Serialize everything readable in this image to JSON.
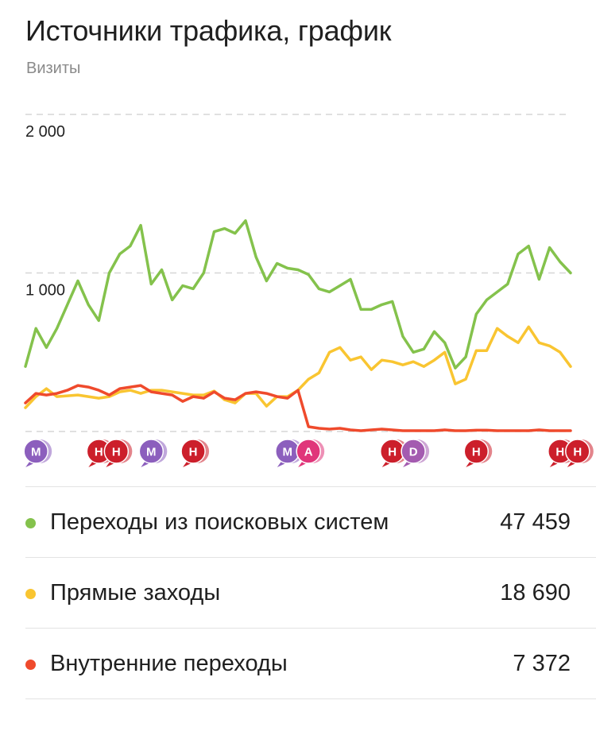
{
  "header": {
    "title": "Источники трафика, график",
    "subtitle": "Визиты"
  },
  "chart_data": {
    "type": "line",
    "title": "Источники трафика, график",
    "ylabel": "Визиты",
    "ylim": [
      0,
      2000
    ],
    "y_ticks": [
      {
        "value": 2000,
        "label": "2 000"
      },
      {
        "value": 1000,
        "label": "1 000"
      }
    ],
    "grid": true,
    "series": [
      {
        "name": "Переходы из поисковых систем",
        "color": "#84c24c",
        "values": [
          410,
          650,
          530,
          650,
          800,
          950,
          800,
          700,
          1000,
          1120,
          1170,
          1300,
          930,
          1020,
          830,
          920,
          900,
          1000,
          1260,
          1280,
          1250,
          1330,
          1100,
          950,
          1060,
          1030,
          1020,
          990,
          900,
          880,
          920,
          960,
          770,
          770,
          800,
          820,
          600,
          500,
          520,
          630,
          560,
          400,
          470,
          740,
          830,
          880,
          930,
          1120,
          1170,
          960,
          1160,
          1070,
          1000
        ]
      },
      {
        "name": "Прямые заходы",
        "color": "#f9c531",
        "values": [
          150,
          220,
          270,
          220,
          225,
          230,
          220,
          210,
          220,
          250,
          260,
          240,
          260,
          260,
          250,
          240,
          230,
          230,
          255,
          200,
          180,
          240,
          240,
          160,
          220,
          220,
          260,
          330,
          370,
          500,
          530,
          450,
          470,
          390,
          450,
          440,
          420,
          440,
          410,
          450,
          500,
          300,
          330,
          510,
          510,
          650,
          600,
          560,
          660,
          560,
          540,
          500,
          410
        ]
      },
      {
        "name": "Внутренние переходы",
        "color": "#ef4a2c",
        "values": [
          180,
          240,
          230,
          240,
          260,
          290,
          280,
          260,
          230,
          270,
          280,
          290,
          250,
          240,
          230,
          190,
          220,
          210,
          250,
          210,
          200,
          240,
          250,
          240,
          220,
          210,
          260,
          30,
          20,
          15,
          20,
          10,
          5,
          10,
          15,
          10,
          5,
          5,
          5,
          5,
          10,
          5,
          5,
          8,
          8,
          5,
          5,
          5,
          5,
          10,
          5,
          5,
          5
        ]
      }
    ],
    "annotations": [
      {
        "index": 1,
        "labels": [
          "М"
        ],
        "color": "#8c5fbd"
      },
      {
        "index": 7,
        "labels": [
          "Н",
          "Н"
        ],
        "color": "#cc1f2b"
      },
      {
        "index": 12,
        "labels": [
          "М"
        ],
        "color": "#8c5fbd"
      },
      {
        "index": 16,
        "labels": [
          "Н"
        ],
        "color": "#cc1f2b"
      },
      {
        "index": 25,
        "labels": [
          "М"
        ],
        "color": "#8c5fbd"
      },
      {
        "index": 27,
        "labels": [
          "А"
        ],
        "color": "#e0357a"
      },
      {
        "index": 35,
        "labels": [
          "Н"
        ],
        "color": "#cc1f2b"
      },
      {
        "index": 37,
        "labels": [
          "D"
        ],
        "color": "#a45bb0"
      },
      {
        "index": 43,
        "labels": [
          "Н"
        ],
        "color": "#cc1f2b"
      },
      {
        "index": 51,
        "labels": [
          "Н",
          "Н"
        ],
        "color": "#cc1f2b"
      }
    ]
  },
  "legend": {
    "items": [
      {
        "label": "Переходы из поисковых систем",
        "value": "47 459",
        "color": "#84c24c"
      },
      {
        "label": "Прямые заходы",
        "value": "18 690",
        "color": "#f9c531"
      },
      {
        "label": "Внутренние переходы",
        "value": "7 372",
        "color": "#ef4a2c"
      }
    ]
  }
}
